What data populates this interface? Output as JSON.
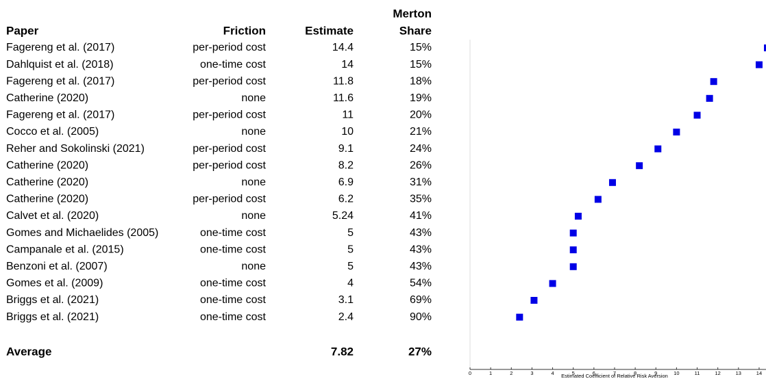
{
  "table": {
    "header": {
      "paper": "Paper",
      "friction": "Friction",
      "estimate": "Estimate",
      "share": [
        "Merton",
        "Share"
      ]
    },
    "rows": [
      [
        "Fagereng et al. (2017)",
        "per-period cost",
        14.4,
        "15%"
      ],
      [
        "Dahlquist et al. (2018)",
        "one-time cost",
        14,
        "15%"
      ],
      [
        "Fagereng et al. (2017)",
        "per-period cost",
        11.8,
        "18%"
      ],
      [
        "Catherine (2020)",
        "none",
        11.6,
        "19%"
      ],
      [
        "Fagereng et al. (2017)",
        "per-period cost",
        11,
        "20%"
      ],
      [
        "Cocco et al. (2005)",
        "none",
        10,
        "21%"
      ],
      [
        "Reher and Sokolinski (2021)",
        "per-period cost",
        9.1,
        "24%"
      ],
      [
        "Catherine (2020)",
        "per-period cost",
        8.2,
        "26%"
      ],
      [
        "Catherine (2020)",
        "none",
        6.9,
        "31%"
      ],
      [
        "Catherine (2020)",
        "per-period cost",
        6.2,
        "35%"
      ],
      [
        "Calvet et al. (2020)",
        "none",
        5.24,
        "41%"
      ],
      [
        "Gomes and Michaelides (2005)",
        "one-time cost",
        5,
        "43%"
      ],
      [
        "Campanale et al. (2015)",
        "one-time cost",
        5,
        "43%"
      ],
      [
        "Benzoni et al. (2007)",
        "none",
        5,
        "43%"
      ],
      [
        "Gomes et al. (2009)",
        "one-time cost",
        4,
        "54%"
      ],
      [
        "Briggs et al. (2021)",
        "one-time cost",
        3.1,
        "69%"
      ],
      [
        "Briggs et al. (2021)",
        "one-time cost",
        2.4,
        "90%"
      ]
    ],
    "average": {
      "label": "Average",
      "estimate": 7.82,
      "share": "27%"
    }
  },
  "chart_data": {
    "type": "dot",
    "xlabel": "Estimated Coefficient of Relative Risk Aversion",
    "xlim": [
      0,
      14.3
    ],
    "xticks": [
      0,
      1,
      2,
      3,
      4,
      5,
      6,
      7,
      8,
      9,
      10,
      11,
      12,
      13,
      14
    ],
    "color": "#0000e6"
  }
}
